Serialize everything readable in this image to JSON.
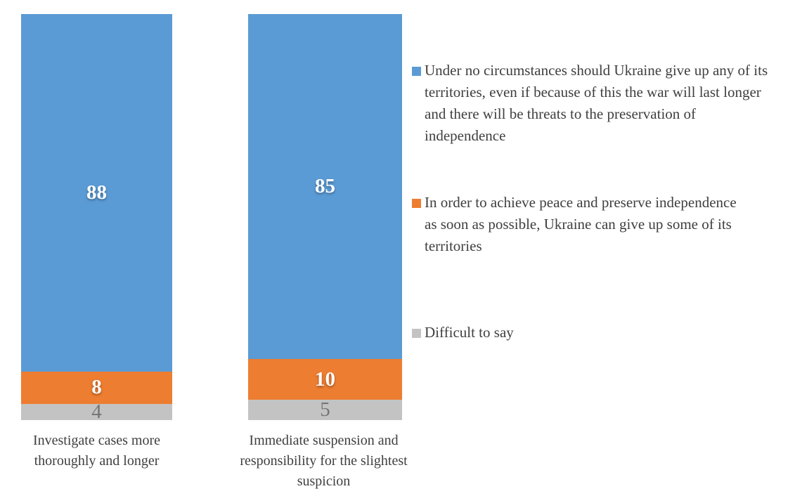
{
  "page": {
    "background_color": "#ffffff",
    "text_color": "#3f3f3f"
  },
  "chart_data": {
    "type": "bar",
    "variant": "stacked-column",
    "title": "",
    "xlabel": "",
    "ylabel": "",
    "ylim": [
      0,
      100
    ],
    "grid": false,
    "axes_visible": false,
    "legend_position": "right",
    "categories": [
      "Investigate cases more thoroughly and longer",
      "Immediate suspension and responsibility for the slightest suspicion"
    ],
    "series": [
      {
        "key": "no-territorial-concessions",
        "name": "Under no circumstances should Ukraine give up any of its territories, even if because of this the war will last longer and there will be threats to the preservation of independence",
        "color": "#5b9bd5",
        "label_color": "#ffffff",
        "label_bold": true,
        "values": [
          88,
          85
        ]
      },
      {
        "key": "concessions-for-peace",
        "name": "In order to achieve peace and preserve independence as soon as possible, Ukraine can give up some of its territories",
        "color": "#ed7d31",
        "label_color": "#ffffff",
        "label_bold": true,
        "values": [
          8,
          10
        ]
      },
      {
        "key": "difficult-to-say",
        "name": "Difficult to say",
        "color": "#c3c3c3",
        "label_color": "#767676",
        "label_bold": false,
        "values": [
          4,
          5
        ]
      }
    ]
  }
}
